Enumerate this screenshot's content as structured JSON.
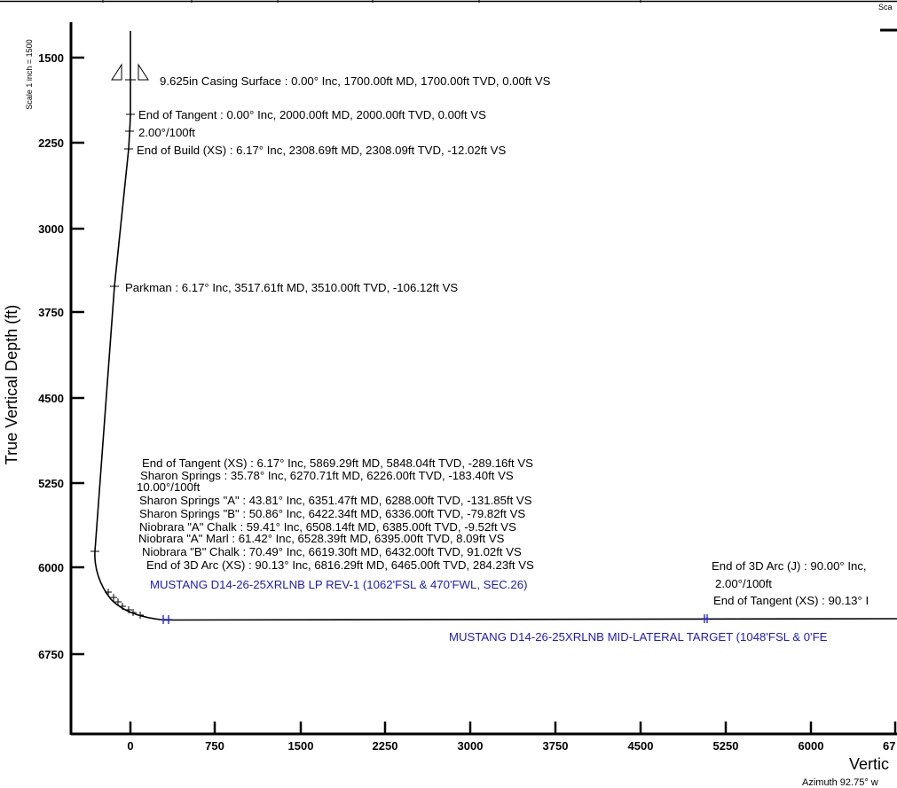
{
  "y_axis": {
    "label": "True Vertical Depth (ft)",
    "scale_note": "Scale 1 inch = 1500",
    "ticks": [
      "1500",
      "2250",
      "3000",
      "3750",
      "4500",
      "5250",
      "6000",
      "6750"
    ]
  },
  "x_axis": {
    "label_partial": "Vertic",
    "azimuth_partial": "Azimuth 92.75° w",
    "ticks": [
      "0",
      "750",
      "1500",
      "2250",
      "3000",
      "3750",
      "4500",
      "5250",
      "6000",
      "67"
    ],
    "scale_partial": "Sca"
  },
  "annotations": {
    "casing": "9.625in Casing Surface : 0.00° Inc, 1700.00ft MD, 1700.00ft TVD, 0.00ft VS",
    "end_tangent": "End of Tangent : 0.00° Inc, 2000.00ft MD, 2000.00ft TVD, 0.00ft VS",
    "dls1": "2.00°/100ft",
    "end_build": "End of Build (XS) : 6.17° Inc, 2308.69ft MD, 2308.09ft TVD, -12.02ft VS",
    "parkman": "Parkman : 6.17° Inc, 3517.61ft MD, 3510.00ft TVD, -106.12ft VS",
    "end_tangent_xs": "End of Tangent (XS) : 6.17° Inc, 5869.29ft MD, 5848.04ft TVD, -289.16ft VS",
    "sharon_springs": "Sharon Springs : 35.78° Inc, 6270.71ft MD, 6226.00ft TVD, -183.40ft VS",
    "dls2": "10.00°/100ft",
    "sharon_a": "Sharon Springs \"A\" : 43.81° Inc, 6351.47ft MD, 6288.00ft TVD, -131.85ft VS",
    "sharon_b": "Sharon Springs \"B\" : 50.86° Inc, 6422.34ft MD, 6336.00ft TVD, -79.82ft VS",
    "niobrara_a_chalk": "Niobrara \"A\" Chalk : 59.41° Inc, 6508.14ft MD, 6385.00ft TVD, -9.52ft VS",
    "niobrara_a_marl": "Niobrara \"A\" Marl : 61.42° Inc, 6528.39ft MD, 6395.00ft TVD, 8.09ft VS",
    "niobrara_b_chalk": "Niobrara \"B\" Chalk : 70.49° Inc, 6619.30ft MD, 6432.00ft TVD, 91.02ft VS",
    "end_3d_arc_xs": "End of 3D Arc (XS) : 90.13° Inc, 6816.29ft MD, 6465.00ft TVD, 284.23ft VS",
    "lp_target": "MUSTANG D14-26-25XRLNB LP REV-1 (1062'FSL & 470'FWL, SEC.26)",
    "end_3d_arc_j": "End of 3D Arc (J) : 90.00° Inc,",
    "dls3": "2.00°/100ft",
    "end_tangent_xs2": "End of Tangent (XS) : 90.13° I",
    "mid_lateral": "MUSTANG D14-26-25XRLNB MID-LATERAL TARGET (1048'FSL & 0'FE"
  },
  "colors": {
    "target_text": "#1a1acc",
    "line": "#000000"
  }
}
